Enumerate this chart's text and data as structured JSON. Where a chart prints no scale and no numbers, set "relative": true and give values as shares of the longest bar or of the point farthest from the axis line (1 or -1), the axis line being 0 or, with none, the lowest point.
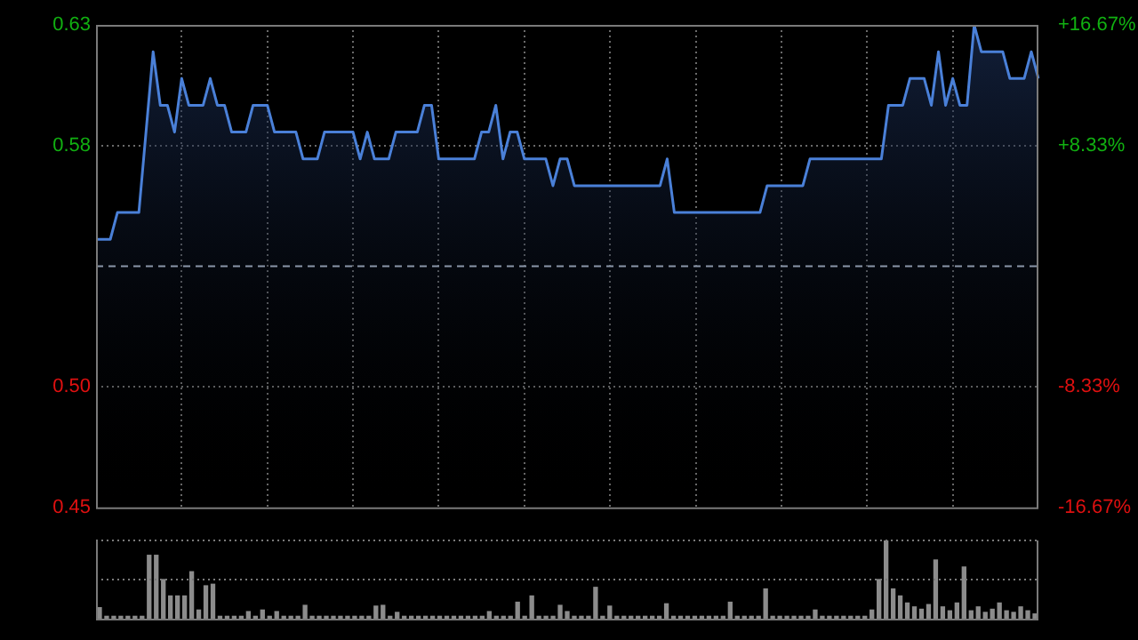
{
  "chart_data": [
    {
      "type": "area",
      "categories": [
        null,
        null,
        null,
        null,
        null,
        null,
        null,
        null,
        null,
        null,
        null,
        null,
        null,
        null,
        null,
        null,
        null,
        null,
        null,
        null,
        null,
        null,
        null,
        null,
        null,
        null,
        null,
        null,
        null,
        null,
        null,
        null,
        null,
        null,
        null,
        null,
        null,
        null,
        null,
        null,
        null,
        null,
        null,
        null,
        null,
        null,
        null,
        null,
        null,
        null,
        null,
        null,
        null,
        null,
        null,
        null,
        null,
        null,
        null,
        null,
        null,
        null,
        null,
        null,
        null,
        null,
        null,
        null,
        null,
        null,
        null,
        null,
        null,
        null,
        null,
        null,
        null,
        null,
        null,
        null,
        null,
        null,
        null,
        null,
        null,
        null,
        null,
        null,
        null,
        null,
        null,
        null,
        null,
        null,
        null,
        null,
        null,
        null,
        null,
        null,
        null,
        null,
        null,
        null,
        null,
        null,
        null,
        null,
        null,
        null,
        null,
        null,
        null,
        null,
        null,
        null,
        null,
        null,
        null,
        null,
        null,
        null,
        null,
        null,
        null,
        null,
        null,
        null,
        null,
        null,
        null,
        null,
        null
      ],
      "series": [
        {
          "color": "#4a80d8",
          "values": [
            0.55,
            0.55,
            0.55,
            0.56,
            0.56,
            0.56,
            0.56,
            0.59,
            0.62,
            0.6,
            0.6,
            0.59,
            0.61,
            0.6,
            0.6,
            0.6,
            0.61,
            0.6,
            0.6,
            0.59,
            0.59,
            0.59,
            0.6,
            0.6,
            0.6,
            0.59,
            0.59,
            0.59,
            0.59,
            0.58,
            0.58,
            0.58,
            0.59,
            0.59,
            0.59,
            0.59,
            0.59,
            0.58,
            0.59,
            0.58,
            0.58,
            0.58,
            0.59,
            0.59,
            0.59,
            0.59,
            0.6,
            0.6,
            0.58,
            0.58,
            0.58,
            0.58,
            0.58,
            0.58,
            0.59,
            0.59,
            0.6,
            0.58,
            0.59,
            0.59,
            0.58,
            0.58,
            0.58,
            0.58,
            0.57,
            0.58,
            0.58,
            0.57,
            0.57,
            0.57,
            0.57,
            0.57,
            0.57,
            0.57,
            0.57,
            0.57,
            0.57,
            0.57,
            0.57,
            0.57,
            0.58,
            0.56,
            0.56,
            0.56,
            0.56,
            0.56,
            0.56,
            0.56,
            0.56,
            0.56,
            0.56,
            0.56,
            0.56,
            0.56,
            0.57,
            0.57,
            0.57,
            0.57,
            0.57,
            0.57,
            0.58,
            0.58,
            0.58,
            0.58,
            0.58,
            0.58,
            0.58,
            0.58,
            0.58,
            0.58,
            0.58,
            0.6,
            0.6,
            0.6,
            0.61,
            0.61,
            0.61,
            0.6,
            0.62,
            0.6,
            0.61,
            0.6,
            0.6,
            0.63,
            0.62,
            0.62,
            0.62,
            0.62,
            0.61,
            0.61,
            0.61,
            0.62,
            0.61
          ]
        }
      ],
      "ylim": [
        0.45,
        0.63
      ],
      "yticks": [
        0.63,
        {
          "value": 0.585,
          "label": "0.58"
        },
        {
          "value": 0.495,
          "label": "0.50"
        },
        0.45
      ],
      "y2lim": [
        -16.67,
        16.67
      ],
      "y2ticks": [
        {
          "value": 16.67,
          "label": "+16.67%"
        },
        {
          "value": 8.33,
          "label": "+8.33%"
        },
        {
          "value": -8.33,
          "label": "-8.33%"
        },
        {
          "value": -16.67,
          "label": "-16.67%"
        }
      ],
      "ref_lines": [
        {
          "axis": "y",
          "value": 0.54,
          "color": "#8a96a8",
          "line_style": "dashed"
        }
      ],
      "grid": true
    },
    {
      "type": "bar",
      "relative": true,
      "ref_lines": [
        {
          "axis": "y",
          "value": 1,
          "color": "#7a7a7a",
          "line_style": "dotted"
        },
        {
          "axis": "y",
          "value": 0.5,
          "color": "#7a7a7a",
          "line_style": "dotted"
        }
      ],
      "color": "#8c8c8c",
      "categories": [
        null,
        null,
        null,
        null,
        null,
        null,
        null,
        null,
        null,
        null,
        null,
        null,
        null,
        null,
        null,
        null,
        null,
        null,
        null,
        null,
        null,
        null,
        null,
        null,
        null,
        null,
        null,
        null,
        null,
        null,
        null,
        null,
        null,
        null,
        null,
        null,
        null,
        null,
        null,
        null,
        null,
        null,
        null,
        null,
        null,
        null,
        null,
        null,
        null,
        null,
        null,
        null,
        null,
        null,
        null,
        null,
        null,
        null,
        null,
        null,
        null,
        null,
        null,
        null,
        null,
        null,
        null,
        null,
        null,
        null,
        null,
        null,
        null,
        null,
        null,
        null,
        null,
        null,
        null,
        null,
        null,
        null,
        null,
        null,
        null,
        null,
        null,
        null,
        null,
        null,
        null,
        null,
        null,
        null,
        null,
        null,
        null,
        null,
        null,
        null,
        null,
        null,
        null,
        null,
        null,
        null,
        null,
        null,
        null,
        null,
        null,
        null,
        null,
        null,
        null,
        null,
        null,
        null,
        null,
        null,
        null,
        null,
        null,
        null,
        null,
        null,
        null,
        null,
        null,
        null,
        null,
        null,
        null
      ],
      "values": [
        0.14,
        0.03,
        0.03,
        0.03,
        0.03,
        0.03,
        0.03,
        0.81,
        0.81,
        0.5,
        0.29,
        0.29,
        0.29,
        0.6,
        0.11,
        0.42,
        0.44,
        0.03,
        0.03,
        0.03,
        0.03,
        0.09,
        0.03,
        0.11,
        0.03,
        0.09,
        0.03,
        0.03,
        0.03,
        0.17,
        0.03,
        0.03,
        0.03,
        0.03,
        0.03,
        0.03,
        0.03,
        0.03,
        0.03,
        0.16,
        0.17,
        0.03,
        0.08,
        0.03,
        0.03,
        0.03,
        0.03,
        0.03,
        0.03,
        0.03,
        0.03,
        0.03,
        0.03,
        0.03,
        0.03,
        0.09,
        0.03,
        0.03,
        0.03,
        0.21,
        0.03,
        0.29,
        0.03,
        0.03,
        0.03,
        0.17,
        0.09,
        0.03,
        0.03,
        0.03,
        0.4,
        0.03,
        0.16,
        0.03,
        0.03,
        0.03,
        0.03,
        0.03,
        0.03,
        0.03,
        0.19,
        0.03,
        0.03,
        0.03,
        0.03,
        0.03,
        0.03,
        0.03,
        0.03,
        0.21,
        0.03,
        0.03,
        0.03,
        0.03,
        0.38,
        0.03,
        0.03,
        0.03,
        0.03,
        0.03,
        0.03,
        0.11,
        0.03,
        0.03,
        0.03,
        0.03,
        0.03,
        0.03,
        0.03,
        0.11,
        0.5,
        1,
        0.38,
        0.29,
        0.2,
        0.15,
        0.12,
        0.18,
        0.75,
        0.15,
        0.1,
        0.2,
        0.66,
        0.1,
        0.15,
        0.08,
        0.12,
        0.2,
        0.1,
        0.08,
        0.15,
        0.1,
        0.06
      ]
    }
  ]
}
